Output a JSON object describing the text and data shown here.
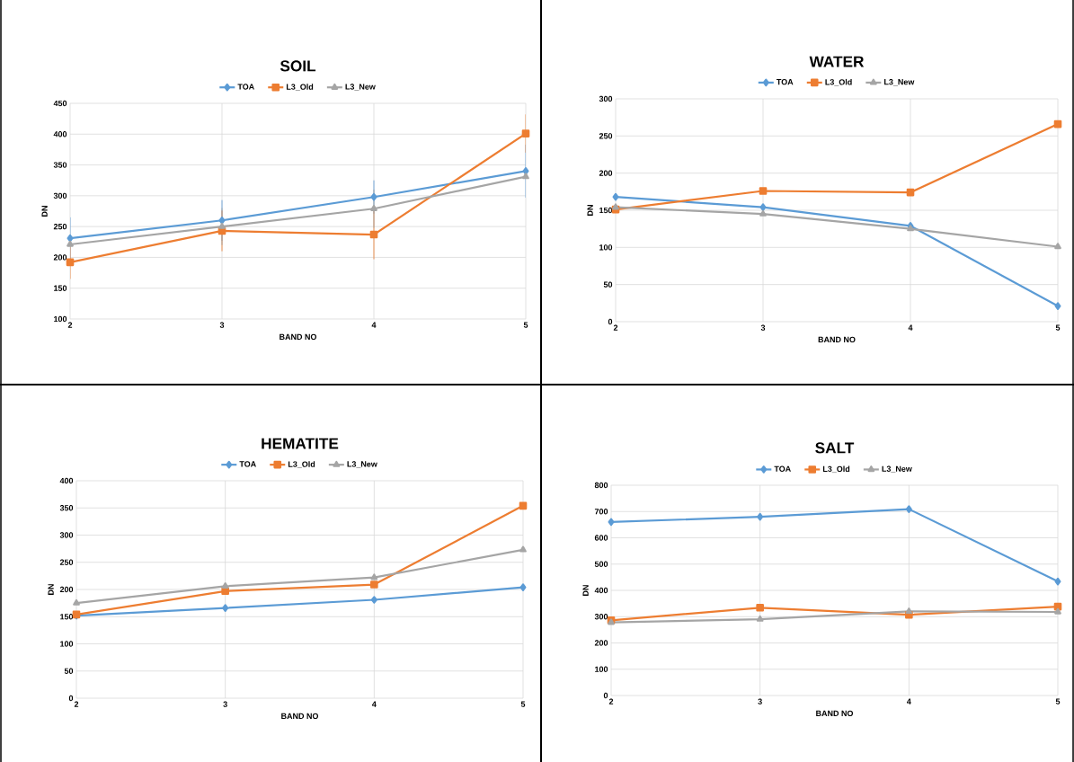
{
  "chart_data": [
    {
      "type": "line",
      "title": "SOIL",
      "xlabel": "BAND NO",
      "ylabel": "DN",
      "x": [
        2,
        3,
        4,
        5
      ],
      "xlim": [
        2,
        5
      ],
      "xticks": [
        2,
        3,
        4,
        5
      ],
      "ylim": [
        100,
        450
      ],
      "yticks": [
        100,
        150,
        200,
        250,
        300,
        350,
        400,
        450
      ],
      "grid": true,
      "legend": "top",
      "series": [
        {
          "name": "TOA",
          "color": "#5b9bd5",
          "marker": "diamond",
          "values": [
            231,
            260,
            298,
            340
          ],
          "errors": [
            34,
            33,
            27,
            43
          ]
        },
        {
          "name": "L3_Old",
          "color": "#ed7d31",
          "marker": "square",
          "values": [
            192,
            243,
            237,
            401
          ],
          "errors": [
            27,
            33,
            40,
            31
          ]
        },
        {
          "name": "L3_New",
          "color": "#a5a5a5",
          "marker": "triangle",
          "values": [
            221,
            250,
            279,
            331
          ],
          "errors": [
            null,
            30,
            31,
            null
          ]
        }
      ]
    },
    {
      "type": "line",
      "title": "WATER",
      "xlabel": "BAND NO",
      "ylabel": "DN",
      "x": [
        2,
        3,
        4,
        5
      ],
      "xlim": [
        2,
        5
      ],
      "xticks": [
        2,
        3,
        4,
        5
      ],
      "ylim": [
        0,
        300
      ],
      "yticks": [
        0,
        50,
        100,
        150,
        200,
        250,
        300
      ],
      "grid": true,
      "legend": "top",
      "series": [
        {
          "name": "TOA",
          "color": "#5b9bd5",
          "marker": "diamond",
          "values": [
            168,
            154,
            129,
            21
          ]
        },
        {
          "name": "L3_Old",
          "color": "#ed7d31",
          "marker": "square",
          "values": [
            151,
            176,
            174,
            266
          ]
        },
        {
          "name": "L3_New",
          "color": "#a5a5a5",
          "marker": "triangle",
          "values": [
            154,
            145,
            125,
            101
          ]
        }
      ]
    },
    {
      "type": "line",
      "title": "HEMATITE",
      "xlabel": "BAND NO",
      "ylabel": "DN",
      "x": [
        2,
        3,
        4,
        5
      ],
      "xlim": [
        2,
        5
      ],
      "xticks": [
        2,
        3,
        4,
        5
      ],
      "ylim": [
        0,
        400
      ],
      "yticks": [
        0,
        50,
        100,
        150,
        200,
        250,
        300,
        350,
        400
      ],
      "grid": true,
      "legend": "top",
      "series": [
        {
          "name": "TOA",
          "color": "#5b9bd5",
          "marker": "diamond",
          "values": [
            152,
            166,
            181,
            204
          ]
        },
        {
          "name": "L3_Old",
          "color": "#ed7d31",
          "marker": "square",
          "values": [
            154,
            197,
            209,
            354
          ]
        },
        {
          "name": "L3_New",
          "color": "#a5a5a5",
          "marker": "triangle",
          "values": [
            175,
            206,
            222,
            273
          ]
        }
      ]
    },
    {
      "type": "line",
      "title": "SALT",
      "xlabel": "BAND NO",
      "ylabel": "DN",
      "x": [
        2,
        3,
        4,
        5
      ],
      "xlim": [
        2,
        5
      ],
      "xticks": [
        2,
        3,
        4,
        5
      ],
      "ylim": [
        0,
        800
      ],
      "yticks": [
        0,
        100,
        200,
        300,
        400,
        500,
        600,
        700,
        800
      ],
      "grid": true,
      "legend": "top",
      "series": [
        {
          "name": "TOA",
          "color": "#5b9bd5",
          "marker": "diamond",
          "values": [
            660,
            680,
            709,
            434
          ]
        },
        {
          "name": "L3_Old",
          "color": "#ed7d31",
          "marker": "square",
          "values": [
            286,
            334,
            307,
            338
          ]
        },
        {
          "name": "L3_New",
          "color": "#a5a5a5",
          "marker": "triangle",
          "values": [
            278,
            290,
            320,
            318
          ]
        }
      ]
    }
  ]
}
